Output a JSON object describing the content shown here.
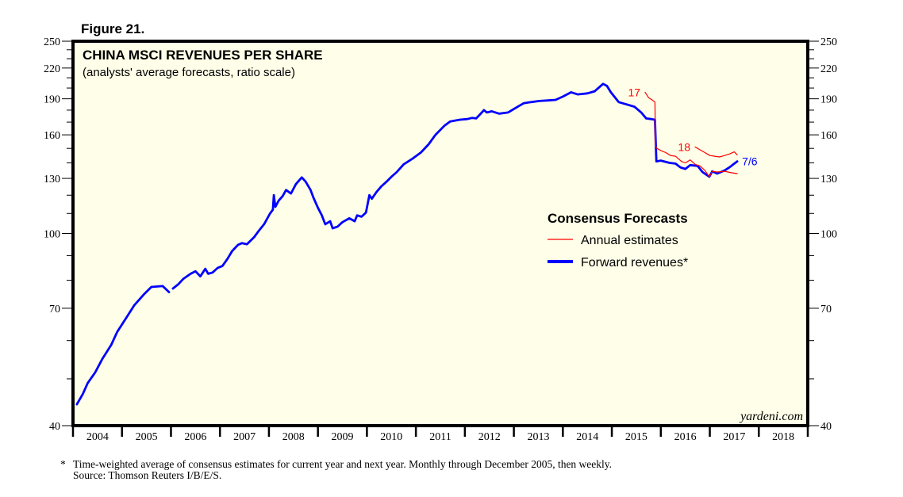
{
  "figure_label": "Figure 21.",
  "watermark": "yardeni.com",
  "footnote": {
    "marker": "*",
    "line1": "Time-weighted average of consensus estimates for current year and next year. Monthly through December 2005, then weekly.",
    "line2": "Source: Thomson Reuters I/B/E/S."
  },
  "colors": {
    "background": "#fffee8",
    "forward": "#0000ff",
    "annual": "#ff0000"
  },
  "chart_data": {
    "type": "line",
    "title": "CHINA MSCI REVENUES PER SHARE",
    "subtitle": "(analysts' average forecasts, ratio scale)",
    "xlabel": "",
    "ylabel": "",
    "yscale": "log",
    "ylim": [
      40,
      250
    ],
    "xlim": [
      2004,
      2019
    ],
    "y_ticks_major": [
      40,
      70,
      100,
      130,
      160,
      190,
      220,
      250
    ],
    "y_ticks_minor": [
      50,
      60,
      80,
      90,
      110,
      120,
      140,
      150,
      170,
      180,
      200,
      210,
      230,
      240
    ],
    "x_tick_labels": [
      "2004",
      "2005",
      "2006",
      "2007",
      "2008",
      "2009",
      "2010",
      "2011",
      "2012",
      "2013",
      "2014",
      "2015",
      "2016",
      "2017",
      "2018"
    ],
    "grid": false,
    "legend": {
      "title": "Consensus Forecasts",
      "position": "center-right",
      "entries": [
        "Annual estimates",
        "Forward revenues*"
      ]
    },
    "series": [
      {
        "name": "Forward revenues*",
        "color": "#0000ff",
        "end_label": "7/6",
        "segments": [
          {
            "x": [
              2004.08,
              2004.2,
              2004.3,
              2004.45,
              2004.6,
              2004.78,
              2004.9,
              2005.1,
              2005.25,
              2005.46,
              2005.6,
              2005.83,
              2005.96
            ],
            "y": [
              44.3,
              46.5,
              49.0,
              51.5,
              55.0,
              58.8,
              62.5,
              67.2,
              71.0,
              75.0,
              77.5,
              77.8,
              75.6
            ]
          },
          {
            "x": [
              2006.04,
              2006.15,
              2006.25,
              2006.4,
              2006.5,
              2006.6,
              2006.7,
              2006.76,
              2006.85,
              2006.95,
              2007.05,
              2007.15,
              2007.25,
              2007.37,
              2007.45,
              2007.55,
              2007.7,
              2007.8,
              2007.9,
              2008.02,
              2008.08,
              2008.1,
              2008.13,
              2008.2,
              2008.28,
              2008.35,
              2008.45,
              2008.55,
              2008.67,
              2008.75,
              2008.85,
              2008.91,
              2009.0,
              2009.08,
              2009.15,
              2009.25,
              2009.3,
              2009.4,
              2009.5,
              2009.64,
              2009.75,
              2009.8,
              2009.89,
              2009.98,
              2010.05,
              2010.1,
              2010.2,
              2010.29,
              2010.4,
              2010.5,
              2010.61,
              2010.75,
              2010.94,
              2011.1,
              2011.26,
              2011.4,
              2011.58,
              2011.7,
              2011.9,
              2012.05,
              2012.15,
              2012.23,
              2012.3,
              2012.39,
              2012.45,
              2012.55,
              2012.7,
              2012.88,
              2013.0,
              2013.1,
              2013.2,
              2013.35,
              2013.52,
              2013.7,
              2013.85,
              2014.0,
              2014.17,
              2014.3,
              2014.5,
              2014.65,
              2014.82,
              2014.9,
              2014.98,
              2015.05,
              2015.14,
              2015.3,
              2015.46,
              2015.6,
              2015.7,
              2015.8,
              2015.88,
              2015.91,
              2016.0,
              2016.18,
              2016.3,
              2016.4,
              2016.5,
              2016.6,
              2016.75,
              2016.85,
              2016.99,
              2017.05,
              2017.15,
              2017.3,
              2017.4,
              2017.5,
              2017.56
            ],
            "y": [
              76.9,
              78.5,
              80.5,
              82.5,
              83.5,
              81.5,
              84.5,
              82.5,
              83.0,
              84.8,
              85.6,
              88.5,
              92.0,
              94.7,
              95.5,
              95.0,
              98.3,
              101.5,
              104.5,
              109.9,
              112.0,
              120.0,
              113.5,
              117.0,
              119.5,
              123.0,
              121.0,
              126.5,
              130.6,
              128.0,
              123.0,
              118.5,
              113.0,
              109.0,
              104.5,
              106.0,
              102.5,
              103.3,
              105.5,
              107.5,
              106.0,
              109.0,
              108.3,
              110.5,
              120.0,
              118.0,
              122.0,
              125.0,
              128.0,
              131.0,
              134.0,
              139.0,
              143.0,
              147.0,
              153.0,
              160.0,
              167.0,
              170.5,
              172.0,
              172.5,
              173.5,
              173.0,
              176.0,
              180.0,
              178.0,
              179.0,
              177.0,
              178.0,
              181.0,
              183.5,
              186.0,
              187.0,
              188.0,
              188.5,
              189.0,
              192.0,
              196.0,
              194.0,
              195.0,
              197.0,
              204.0,
              202.0,
              196.0,
              192.0,
              187.0,
              185.0,
              183.0,
              178.0,
              173.0,
              172.5,
              172.0,
              141.0,
              141.5,
              140.0,
              139.5,
              137.0,
              136.0,
              138.5,
              138.0,
              134.0,
              131.0,
              134.5,
              133.0,
              135.0,
              137.0,
              139.5,
              141.0
            ]
          }
        ]
      },
      {
        "name": "Annual estimates 2017",
        "color": "#ff0000",
        "end_label": "17",
        "x": [
          2015.68,
          2015.75,
          2015.82,
          2015.88,
          2015.89,
          2015.92,
          2016.0,
          2016.1,
          2016.2,
          2016.3,
          2016.42,
          2016.5,
          2016.6,
          2016.7,
          2016.8,
          2016.9,
          2016.99,
          2017.05,
          2017.15,
          2017.3,
          2017.45,
          2017.56
        ],
        "y": [
          196.0,
          191.0,
          189.0,
          187.0,
          152.0,
          150.0,
          148.5,
          147.0,
          145.0,
          144.5,
          141.0,
          140.0,
          142.0,
          139.0,
          138.0,
          135.0,
          131.0,
          134.5,
          134.0,
          134.5,
          133.5,
          133.0
        ]
      },
      {
        "name": "Annual estimates 2018",
        "color": "#ff0000",
        "end_label": "18",
        "x": [
          2016.7,
          2016.8,
          2016.9,
          2017.0,
          2017.1,
          2017.2,
          2017.3,
          2017.4,
          2017.5,
          2017.56
        ],
        "y": [
          151.0,
          149.0,
          147.0,
          145.0,
          144.5,
          144.0,
          145.0,
          146.0,
          147.5,
          145.5
        ]
      }
    ]
  }
}
